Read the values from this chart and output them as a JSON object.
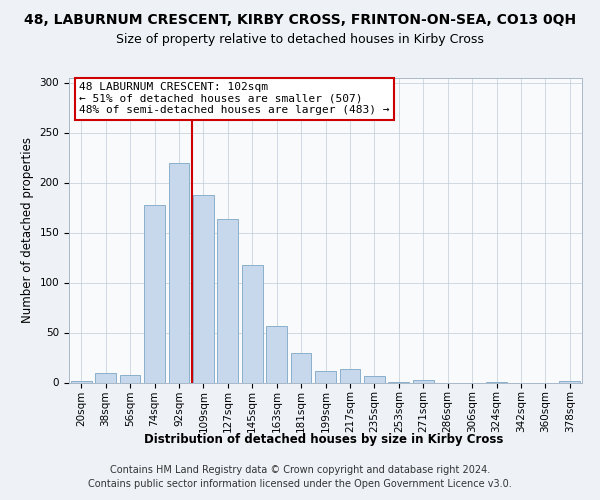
{
  "title": "48, LABURNUM CRESCENT, KIRBY CROSS, FRINTON-ON-SEA, CO13 0QH",
  "subtitle": "Size of property relative to detached houses in Kirby Cross",
  "xlabel": "Distribution of detached houses by size in Kirby Cross",
  "ylabel": "Number of detached properties",
  "categories": [
    "20sqm",
    "38sqm",
    "56sqm",
    "74sqm",
    "92sqm",
    "109sqm",
    "127sqm",
    "145sqm",
    "163sqm",
    "181sqm",
    "199sqm",
    "217sqm",
    "235sqm",
    "253sqm",
    "271sqm",
    "286sqm",
    "306sqm",
    "324sqm",
    "342sqm",
    "360sqm",
    "378sqm"
  ],
  "bar_heights": [
    2,
    10,
    8,
    178,
    220,
    188,
    164,
    118,
    57,
    30,
    12,
    14,
    7,
    1,
    3,
    0,
    0,
    1,
    0,
    0,
    2
  ],
  "bar_color": "#c8d8ec",
  "bar_edge_color": "#8ab0cc",
  "vline_x": 4.55,
  "vline_color": "#cc0000",
  "annotation_text": "48 LABURNUM CRESCENT: 102sqm\n← 51% of detached houses are smaller (507)\n48% of semi-detached houses are larger (483) →",
  "annotation_box_color": "#ffffff",
  "annotation_box_edge": "#cc0000",
  "ylim": [
    0,
    305
  ],
  "yticks": [
    0,
    50,
    100,
    150,
    200,
    250,
    300
  ],
  "footer_line1": "Contains HM Land Registry data © Crown copyright and database right 2024.",
  "footer_line2": "Contains public sector information licensed under the Open Government Licence v3.0.",
  "bg_color": "#eef2f7",
  "plot_bg_color": "#f8fafc",
  "title_fontsize": 10,
  "subtitle_fontsize": 9,
  "axis_label_fontsize": 8.5,
  "tick_fontsize": 7.5,
  "annotation_fontsize": 8,
  "footer_fontsize": 7
}
